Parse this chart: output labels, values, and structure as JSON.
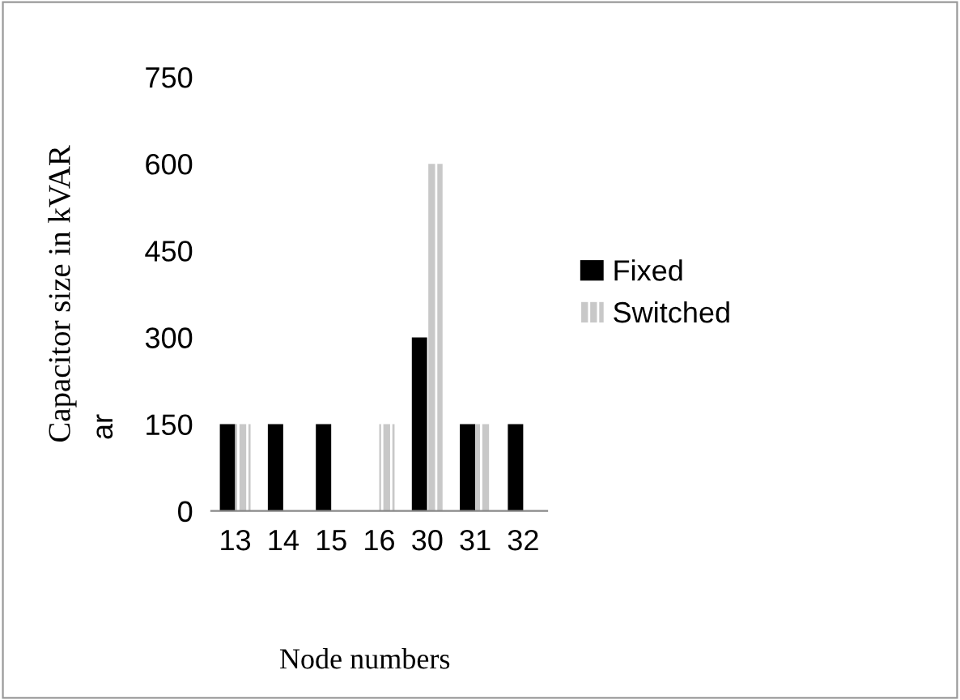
{
  "chart_data": {
    "type": "bar",
    "xlabel": "Node numbers",
    "ylabel": "Capacitor size in kVAR",
    "categories": [
      "13",
      "14",
      "15",
      "16",
      "30",
      "31",
      "32"
    ],
    "series": [
      {
        "name": "Fixed",
        "color": "#000000",
        "values": [
          150,
          150,
          150,
          null,
          300,
          150,
          150
        ]
      },
      {
        "name": "Switched",
        "color": "#c8c8c8",
        "values": [
          150,
          null,
          null,
          150,
          600,
          150,
          null
        ]
      }
    ],
    "ylim": [
      0,
      750
    ],
    "yticks": [
      0,
      150,
      300,
      450,
      600,
      750
    ],
    "grid": false,
    "legend": "right",
    "annotations": [
      "ar"
    ]
  }
}
